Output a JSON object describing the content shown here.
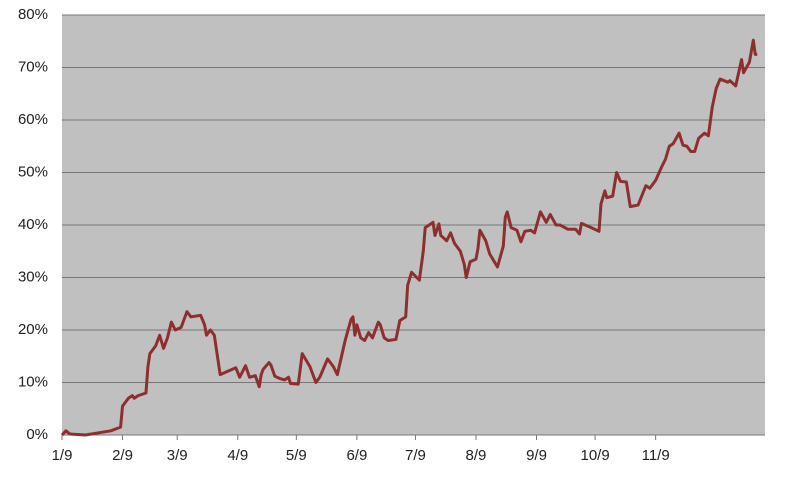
{
  "chart_data": {
    "type": "line",
    "x": [
      0,
      2,
      4,
      12,
      25,
      30,
      31,
      34,
      36,
      37,
      39,
      43,
      44,
      45,
      48,
      50,
      52,
      54,
      56,
      58,
      61,
      64,
      66,
      71,
      73,
      74,
      76,
      78,
      81,
      84,
      89,
      91,
      94,
      96,
      99,
      101,
      102,
      103,
      106,
      107,
      109,
      112,
      114,
      116,
      117,
      121,
      123,
      127,
      130,
      132,
      136,
      139,
      141,
      145,
      148,
      149,
      150,
      151,
      153,
      155,
      157,
      159,
      162,
      163,
      165,
      167,
      171,
      173,
      176,
      177,
      179,
      183,
      185,
      186,
      190,
      191,
      193,
      194,
      197,
      199,
      201,
      204,
      206,
      207,
      209,
      212,
      213,
      214,
      217,
      219,
      223,
      226,
      227,
      228,
      230,
      233,
      235,
      237,
      240,
      242,
      245,
      248,
      250,
      253,
      255,
      259,
      263,
      265,
      266,
      271,
      275,
      276,
      278,
      279,
      282,
      284,
      286,
      289,
      291,
      295,
      299,
      301,
      304,
      307,
      309,
      311,
      313,
      316,
      318,
      320,
      322,
      324,
      326,
      329,
      331,
      333,
      335,
      337,
      341,
      342,
      345,
      348,
      349,
      352,
      354,
      355,
      356
    ],
    "series": [
      {
        "color": "#8e2f2f",
        "values": [
          0,
          0.8,
          0.2,
          0,
          0.8,
          1.5,
          5.5,
          7,
          7.5,
          7,
          7.5,
          8,
          13,
          15.5,
          17,
          19,
          16.5,
          18.5,
          21.5,
          20,
          20.5,
          23.5,
          22.5,
          22.8,
          21,
          19,
          20,
          19,
          11.5,
          12,
          12.8,
          11,
          13.2,
          11,
          11.3,
          9.2,
          11.5,
          12.5,
          13.8,
          13.3,
          11.2,
          10.7,
          10.5,
          11,
          9.8,
          9.7,
          15.5,
          13,
          10,
          11,
          14.5,
          13,
          11.5,
          18,
          22,
          22.5,
          19,
          21,
          18.5,
          18,
          19.5,
          18.5,
          21.5,
          21,
          18.5,
          18,
          18.2,
          21.8,
          22.5,
          28.5,
          31,
          29.5,
          35,
          39.5,
          40.5,
          38,
          40.2,
          38,
          37,
          38.5,
          36.5,
          35,
          32.5,
          30,
          33,
          33.5,
          35.5,
          39,
          37,
          34.5,
          32,
          36,
          41.5,
          42.5,
          39.5,
          39,
          36.8,
          38.8,
          39,
          38.5,
          42.5,
          40.5,
          42,
          40,
          40,
          39.2,
          39.2,
          38.3,
          40.3,
          39.5,
          38.8,
          44,
          46.5,
          45.2,
          45.5,
          50,
          48.3,
          48.2,
          43.5,
          43.8,
          47.5,
          47,
          48.5,
          51,
          52.5,
          55,
          55.5,
          57.5,
          55.2,
          55,
          54,
          54,
          56.5,
          57.5,
          57,
          62.5,
          66,
          67.8,
          67.2,
          67.5,
          66.5,
          71.5,
          69,
          71,
          75.2,
          72.5,
          72.5
        ]
      }
    ],
    "xlim": [
      0,
      360
    ],
    "xticks": [
      {
        "value": 0,
        "label": "1/9"
      },
      {
        "value": 31,
        "label": "2/9"
      },
      {
        "value": 59,
        "label": "3/9"
      },
      {
        "value": 90,
        "label": "4/9"
      },
      {
        "value": 120,
        "label": "5/9"
      },
      {
        "value": 151,
        "label": "6/9"
      },
      {
        "value": 181,
        "label": "7/9"
      },
      {
        "value": 212,
        "label": "8/9"
      },
      {
        "value": 243,
        "label": "9/9"
      },
      {
        "value": 273,
        "label": "10/9"
      },
      {
        "value": 304,
        "label": "11/9"
      }
    ],
    "ylim": [
      0,
      80
    ],
    "yticks": [
      {
        "value": 0,
        "label": "0%"
      },
      {
        "value": 10,
        "label": "10%"
      },
      {
        "value": 20,
        "label": "20%"
      },
      {
        "value": 30,
        "label": "30%"
      },
      {
        "value": 40,
        "label": "40%"
      },
      {
        "value": 50,
        "label": "50%"
      },
      {
        "value": 60,
        "label": "60%"
      },
      {
        "value": 70,
        "label": "70%"
      },
      {
        "value": 80,
        "label": "80%"
      }
    ],
    "grid": true,
    "plot_color": "#c0c0c0"
  }
}
